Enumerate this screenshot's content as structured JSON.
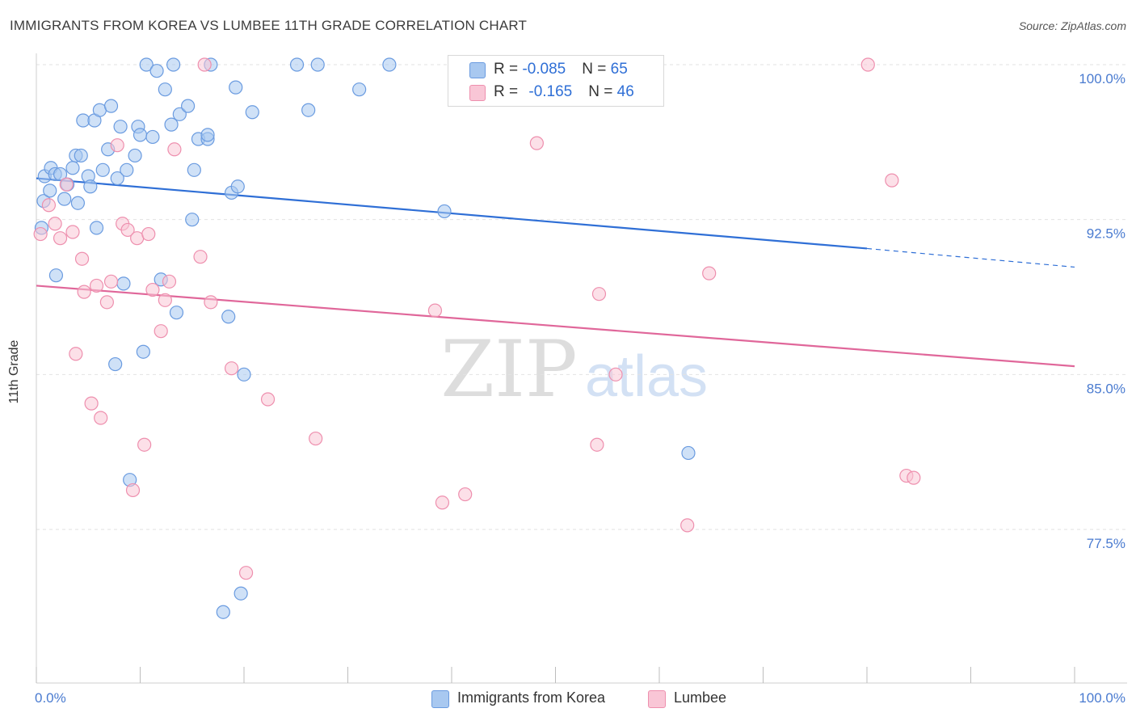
{
  "header": {
    "title": "IMMIGRANTS FROM KOREA VS LUMBEE 11TH GRADE CORRELATION CHART",
    "source": "Source: ZipAtlas.com"
  },
  "watermark": {
    "zip": "ZIP",
    "atlas": "atlas"
  },
  "legend": {
    "rows": [
      {
        "r_label": "R = ",
        "r_value": "-0.085",
        "n_label": "N = ",
        "n_value": "65",
        "color": "#a8c8f0",
        "border": "#6a9be0"
      },
      {
        "r_label": "R = ",
        "r_value": "-0.165",
        "n_label": "N = ",
        "n_value": "46",
        "color": "#f9c6d6",
        "border": "#ee8fae"
      }
    ]
  },
  "bottom_legend": [
    {
      "label": "Immigrants from Korea",
      "color": "#a8c8f0",
      "border": "#6a9be0"
    },
    {
      "label": "Lumbee",
      "color": "#f9c6d6",
      "border": "#ee8fae"
    }
  ],
  "chart_data": {
    "type": "scatter",
    "title": "IMMIGRANTS FROM KOREA VS LUMBEE 11TH GRADE CORRELATION CHART",
    "xlabel": "",
    "ylabel": "11th Grade",
    "xlim": [
      0,
      100
    ],
    "ylim": [
      71.0,
      101.0
    ],
    "x_tick_labels": [
      "0.0%",
      "100.0%"
    ],
    "y_ticks": [
      77.5,
      85.0,
      92.5,
      100.0
    ],
    "y_tick_labels": [
      "77.5%",
      "85.0%",
      "92.5%",
      "100.0%"
    ],
    "grid": true,
    "series": [
      {
        "name": "Immigrants from Korea",
        "color": "#6a9be0",
        "fill": "#a8c8f0",
        "trend": {
          "x0": 0,
          "y0": 94.5,
          "x1": 80,
          "y1": 91.1,
          "dash_to_x": 100,
          "dash_to_y": 90.2
        },
        "points": [
          [
            0.5,
            92.1
          ],
          [
            0.7,
            93.4
          ],
          [
            0.8,
            94.6
          ],
          [
            1.3,
            93.9
          ],
          [
            1.4,
            95.0
          ],
          [
            1.8,
            94.7
          ],
          [
            1.9,
            89.8
          ],
          [
            2.3,
            94.7
          ],
          [
            2.7,
            93.5
          ],
          [
            3.0,
            94.2
          ],
          [
            3.5,
            95.0
          ],
          [
            3.8,
            95.6
          ],
          [
            4.0,
            93.3
          ],
          [
            4.3,
            95.6
          ],
          [
            4.5,
            97.3
          ],
          [
            5.0,
            94.6
          ],
          [
            5.2,
            94.1
          ],
          [
            5.6,
            97.3
          ],
          [
            5.8,
            92.1
          ],
          [
            6.1,
            97.8
          ],
          [
            6.4,
            94.9
          ],
          [
            6.9,
            95.9
          ],
          [
            7.2,
            98.0
          ],
          [
            7.6,
            85.5
          ],
          [
            7.8,
            94.5
          ],
          [
            8.1,
            97.0
          ],
          [
            8.4,
            89.4
          ],
          [
            8.7,
            94.9
          ],
          [
            9.0,
            79.9
          ],
          [
            9.5,
            95.6
          ],
          [
            9.8,
            97.0
          ],
          [
            10.0,
            96.6
          ],
          [
            10.3,
            86.1
          ],
          [
            10.6,
            100.0
          ],
          [
            11.2,
            96.5
          ],
          [
            11.6,
            99.7
          ],
          [
            12.0,
            89.6
          ],
          [
            12.4,
            98.8
          ],
          [
            13.0,
            97.1
          ],
          [
            13.2,
            100.0
          ],
          [
            13.5,
            88.0
          ],
          [
            13.8,
            97.6
          ],
          [
            14.6,
            98.0
          ],
          [
            15.0,
            92.5
          ],
          [
            15.2,
            94.9
          ],
          [
            15.6,
            96.4
          ],
          [
            16.5,
            96.4
          ],
          [
            16.5,
            96.6
          ],
          [
            16.8,
            100.0
          ],
          [
            18.0,
            73.5
          ],
          [
            18.5,
            87.8
          ],
          [
            18.8,
            93.8
          ],
          [
            19.2,
            98.9
          ],
          [
            19.4,
            94.1
          ],
          [
            19.7,
            74.4
          ],
          [
            20.0,
            85.0
          ],
          [
            20.8,
            97.7
          ],
          [
            25.1,
            100.0
          ],
          [
            26.2,
            97.8
          ],
          [
            27.1,
            100.0
          ],
          [
            31.1,
            98.8
          ],
          [
            34.0,
            100.0
          ],
          [
            39.3,
            92.9
          ],
          [
            40.5,
            100.0
          ],
          [
            62.8,
            81.2
          ]
        ]
      },
      {
        "name": "Lumbee",
        "color": "#ee8fae",
        "fill": "#f9c6d6",
        "trend": {
          "x0": 0,
          "y0": 89.3,
          "x1": 100,
          "y1": 85.4
        },
        "points": [
          [
            0.4,
            91.8
          ],
          [
            1.2,
            93.2
          ],
          [
            1.8,
            92.3
          ],
          [
            2.3,
            91.6
          ],
          [
            2.9,
            94.2
          ],
          [
            3.5,
            91.9
          ],
          [
            3.8,
            86.0
          ],
          [
            4.4,
            90.6
          ],
          [
            4.6,
            89.0
          ],
          [
            5.3,
            83.6
          ],
          [
            5.8,
            89.3
          ],
          [
            6.2,
            82.9
          ],
          [
            6.8,
            88.5
          ],
          [
            7.2,
            89.5
          ],
          [
            7.8,
            96.1
          ],
          [
            8.3,
            92.3
          ],
          [
            8.8,
            92.0
          ],
          [
            9.3,
            79.4
          ],
          [
            9.7,
            91.6
          ],
          [
            10.4,
            81.6
          ],
          [
            10.8,
            91.8
          ],
          [
            11.2,
            89.1
          ],
          [
            12.0,
            87.1
          ],
          [
            12.4,
            88.6
          ],
          [
            12.8,
            89.5
          ],
          [
            13.3,
            95.9
          ],
          [
            15.8,
            90.7
          ],
          [
            16.2,
            100.0
          ],
          [
            16.8,
            88.5
          ],
          [
            18.8,
            85.3
          ],
          [
            20.2,
            75.4
          ],
          [
            22.3,
            83.8
          ],
          [
            26.9,
            81.9
          ],
          [
            38.4,
            88.1
          ],
          [
            39.1,
            78.8
          ],
          [
            41.3,
            79.2
          ],
          [
            48.2,
            96.2
          ],
          [
            54.0,
            81.6
          ],
          [
            54.2,
            88.9
          ],
          [
            55.8,
            85.0
          ],
          [
            62.7,
            77.7
          ],
          [
            64.8,
            89.9
          ],
          [
            80.1,
            100.0
          ],
          [
            82.4,
            94.4
          ],
          [
            83.8,
            80.1
          ],
          [
            84.5,
            80.0
          ]
        ]
      }
    ]
  }
}
